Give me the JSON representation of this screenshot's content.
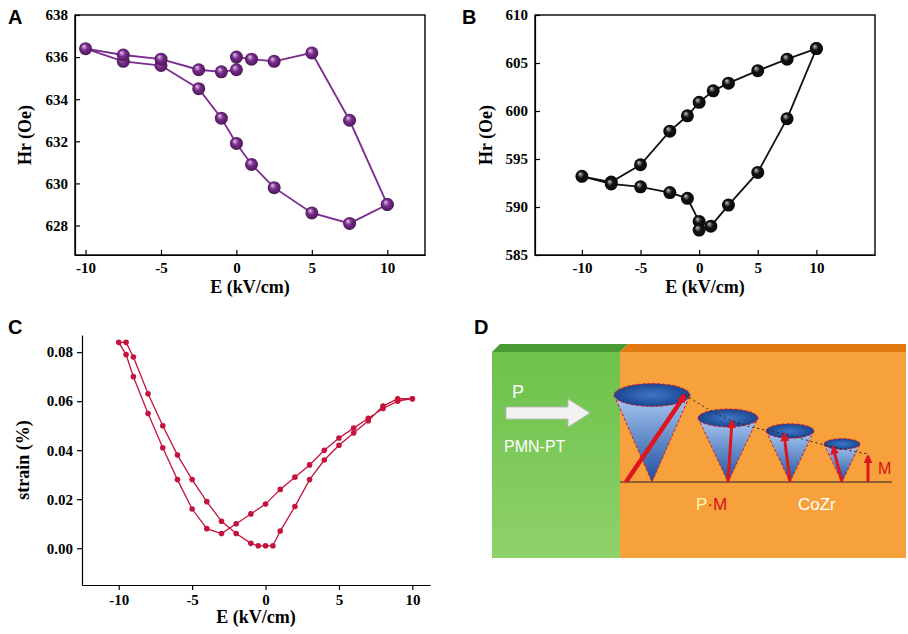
{
  "chart_data": [
    {
      "panel": "A",
      "type": "line",
      "xlabel": "E (kV/cm)",
      "ylabel": "Hr (Oe)",
      "xlim": [
        -10.7,
        12.5
      ],
      "ylim": [
        626.6,
        638
      ],
      "xticks": [
        -10,
        -5,
        0,
        5,
        10
      ],
      "yticks": [
        628,
        630,
        632,
        634,
        636,
        638
      ],
      "x": [
        10,
        7.5,
        5,
        2.5,
        1,
        0,
        -1,
        -2.5,
        -5,
        -7.5,
        -10,
        -7.5,
        -5,
        -2.5,
        -1,
        0,
        0,
        1,
        2.5,
        5,
        7.5,
        10
      ],
      "values": [
        629.0,
        628.1,
        628.6,
        629.8,
        630.9,
        631.9,
        633.1,
        634.5,
        635.6,
        635.8,
        636.4,
        636.1,
        635.9,
        635.4,
        635.3,
        635.4,
        636.0,
        635.9,
        635.8,
        636.2,
        633.0,
        629.0
      ],
      "color": "#7b2a8e",
      "marker": "sphere",
      "grid": false
    },
    {
      "panel": "B",
      "type": "line",
      "xlabel": "E (kV/cm)",
      "ylabel": "Hr (Oe)",
      "xlim": [
        -14,
        15
      ],
      "ylim": [
        585,
        610
      ],
      "xticks": [
        -10,
        -5,
        0,
        5,
        10
      ],
      "yticks": [
        585,
        590,
        595,
        600,
        605,
        610
      ],
      "x": [
        10,
        7.5,
        5,
        2.5,
        1.2,
        0,
        -1,
        -2.5,
        -5,
        -7.5,
        -10,
        -7.5,
        -5,
        -2.5,
        -1,
        0,
        0,
        1,
        2.5,
        5,
        7.5,
        10
      ],
      "values": [
        606.5,
        605.4,
        604.2,
        602.9,
        602.1,
        600.9,
        599.5,
        597.9,
        594.4,
        592.6,
        593.2,
        592.4,
        592.1,
        591.5,
        590.9,
        588.5,
        587.6,
        588.0,
        590.2,
        593.6,
        599.2,
        606.5
      ],
      "color": "#111111",
      "marker": "sphere",
      "grid": false
    },
    {
      "panel": "C",
      "type": "line",
      "xlabel": "E (kV/cm)",
      "ylabel": "strain (%)",
      "xlim": [
        -12.5,
        11.2
      ],
      "ylim": [
        -0.015,
        0.087
      ],
      "xticks": [
        -10,
        -5,
        0,
        5,
        10
      ],
      "yticks": [
        {
          "value": 0,
          "label": "0.00"
        },
        0.02,
        0.04,
        0.06,
        0.08
      ],
      "x": [
        10,
        9,
        8,
        7,
        6,
        5,
        4,
        3,
        2,
        1,
        0,
        -1,
        -2,
        -3,
        -4,
        -5,
        -6,
        -7,
        -8,
        -9,
        -9.5,
        -10,
        -9.5,
        -9,
        -8,
        -7,
        -6,
        -5,
        -4,
        -3,
        -2,
        -1,
        -0.5,
        0,
        0.5,
        1,
        2,
        3,
        4,
        5,
        6,
        7,
        8,
        9,
        10
      ],
      "values": [
        0.061,
        0.06,
        0.057,
        0.053,
        0.049,
        0.045,
        0.04,
        0.034,
        0.029,
        0.024,
        0.018,
        0.014,
        0.01,
        0.006,
        0.008,
        0.016,
        0.028,
        0.041,
        0.055,
        0.07,
        0.079,
        0.084,
        0.084,
        0.078,
        0.063,
        0.05,
        0.038,
        0.028,
        0.019,
        0.011,
        0.006,
        0.002,
        0.001,
        0.001,
        0.001,
        0.007,
        0.017,
        0.028,
        0.036,
        0.042,
        0.047,
        0.052,
        0.058,
        0.061,
        0.061
      ],
      "color": "#c4143c",
      "marker": "circle",
      "grid": false
    }
  ],
  "diagram": {
    "panel": "D",
    "polarization": "P",
    "substrate": "PMN-PT",
    "product": "P·M",
    "film": "CoZr",
    "magnetization": "M"
  }
}
